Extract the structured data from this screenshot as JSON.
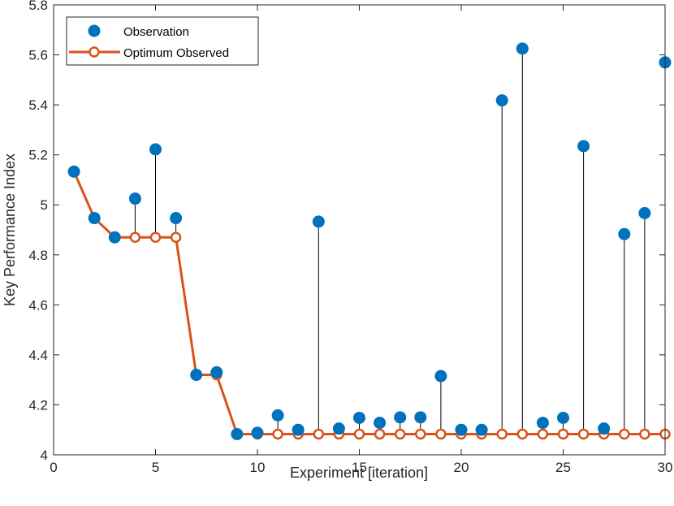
{
  "chart_data": {
    "type": "scatter",
    "title": "",
    "xlabel": "Experiment [iteration]",
    "ylabel": "Key Performance Index",
    "xlim": [
      0,
      30
    ],
    "ylim": [
      4,
      5.8
    ],
    "xticks": [
      0,
      5,
      10,
      15,
      20,
      25,
      30
    ],
    "yticks": [
      4,
      4.2,
      4.4,
      4.6,
      4.8,
      5,
      5.2,
      5.4,
      5.6,
      5.8
    ],
    "xtick_labels": [
      "0",
      "5",
      "10",
      "15",
      "20",
      "25",
      "30"
    ],
    "ytick_labels": [
      "4",
      "4.2",
      "4.4",
      "4.6",
      "4.8",
      "5",
      "5.2",
      "5.4",
      "5.6",
      "5.8"
    ],
    "grid": false,
    "legend_position": "top-left",
    "x": [
      1,
      2,
      3,
      4,
      5,
      6,
      7,
      8,
      9,
      10,
      11,
      12,
      13,
      14,
      15,
      16,
      17,
      18,
      19,
      20,
      21,
      22,
      23,
      24,
      25,
      26,
      27,
      28,
      29,
      30
    ],
    "series": [
      {
        "name": "Observation",
        "marker": "filled-circle",
        "color": "#0072BD",
        "values": [
          5.133,
          4.947,
          4.87,
          5.025,
          5.222,
          4.947,
          4.32,
          4.33,
          4.083,
          4.088,
          4.158,
          4.1,
          4.933,
          4.105,
          4.148,
          4.128,
          4.15,
          4.15,
          4.315,
          4.1,
          4.1,
          5.418,
          5.625,
          4.128,
          4.148,
          5.235,
          4.105,
          4.883,
          4.967,
          5.57
        ]
      },
      {
        "name": "Optimum Observed",
        "marker": "open-circle-line",
        "color": "#D95319",
        "values": [
          5.133,
          4.947,
          4.87,
          4.87,
          4.87,
          4.87,
          4.32,
          4.32,
          4.083,
          4.083,
          4.083,
          4.083,
          4.083,
          4.083,
          4.083,
          4.083,
          4.083,
          4.083,
          4.083,
          4.083,
          4.083,
          4.083,
          4.083,
          4.083,
          4.083,
          4.083,
          4.083,
          4.083,
          4.083,
          4.083
        ]
      }
    ],
    "colors": {
      "axis": "#262626",
      "stem": "#000000",
      "legend_border": "#262626"
    }
  }
}
